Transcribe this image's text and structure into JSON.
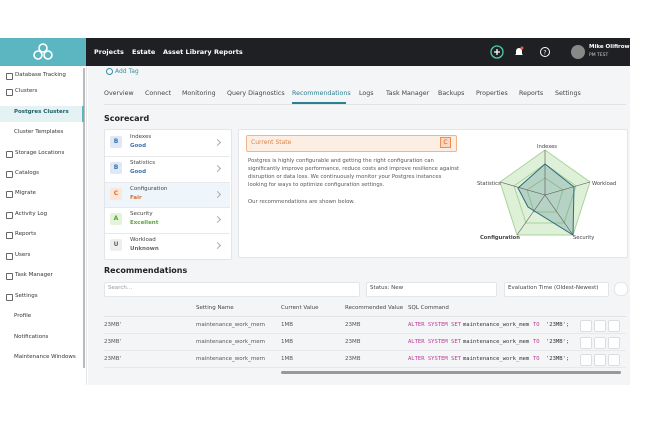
{
  "topbar": {
    "nav": [
      "Projects",
      "Estate",
      "Asset Library",
      "Reports"
    ],
    "user_name": "Mike Olifirowicz",
    "user_role": "PM TEST"
  },
  "sidebar": {
    "items": [
      "Database Tracking",
      "Clusters",
      "Postgres Clusters",
      "Cluster Templates",
      "Storage Locations",
      "Catalogs",
      "Migrate",
      "Activity Log",
      "Reports",
      "Users",
      "Task Manager",
      "Settings",
      "Profile",
      "Notifications",
      "Maintenance Windows"
    ]
  },
  "add_tag": "Add Tag",
  "tabs": [
    "Overview",
    "Connect",
    "Monitoring",
    "Query Diagnostics",
    "Recommendations",
    "Logs",
    "Task Manager",
    "Backups",
    "Properties",
    "Reports",
    "Settings"
  ],
  "scorecard": {
    "title": "Scorecard",
    "items": [
      {
        "grade": "B",
        "name": "Indexes",
        "status": "Good"
      },
      {
        "grade": "B",
        "name": "Statistics",
        "status": "Good"
      },
      {
        "grade": "C",
        "name": "Configuration",
        "status": "Fair"
      },
      {
        "grade": "A",
        "name": "Security",
        "status": "Excellent"
      },
      {
        "grade": "U",
        "name": "Workload",
        "status": "Unknown"
      }
    ],
    "current_state": {
      "label": "Current State",
      "grade": "C",
      "description": "Postgres is highly configurable and getting the right configuration can significantly improve performance, reduce costs and improve resilience against disruption or data loss. We continuously monitor your Postgres instances looking for ways to optimize configuration settings.",
      "note": "Our recommendations are shown below."
    },
    "radar_labels": [
      "Indexes",
      "Workload",
      "Security",
      "Configuration",
      "Statistics"
    ]
  },
  "recommendations": {
    "title": "Recommendations",
    "search": "Search...",
    "filter": "Status: New",
    "sort": "Evaluation Time (Oldest-Newest)",
    "columns": [
      "Setting Name",
      "Current Value",
      "Recommended Value",
      "SQL Command"
    ],
    "rows": [
      {
        "cut": "23MB'",
        "setting": "maintenance_work_mem",
        "current": "1MB",
        "recommended": "23MB",
        "sql": [
          "ALTER SYSTEM SET",
          "maintenance_work_mem",
          "TO",
          "'23MB';"
        ]
      },
      {
        "cut": "23MB'",
        "setting": "maintenance_work_mem",
        "current": "1MB",
        "recommended": "23MB",
        "sql": [
          "ALTER SYSTEM SET",
          "maintenance_work_mem",
          "TO",
          "'23MB';"
        ]
      },
      {
        "cut": "23MB'",
        "setting": "maintenance_work_mem",
        "current": "1MB",
        "recommended": "23MB",
        "sql": [
          "ALTER SYSTEM SET",
          "maintenance_work_mem",
          "TO",
          "'23MB';"
        ]
      }
    ]
  }
}
